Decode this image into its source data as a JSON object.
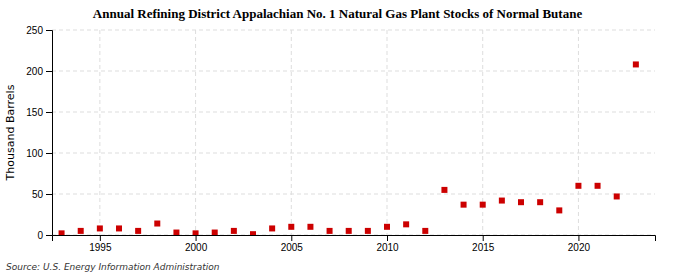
{
  "chart_data": {
    "type": "scatter",
    "title": "Annual Refining District Appalachian No. 1 Natural Gas Plant Stocks of Normal Butane",
    "ylabel": "Thousand Barrels",
    "annotations": [
      "Source: U.S. Energy Information Administration"
    ],
    "x": [
      1993,
      1994,
      1995,
      1996,
      1997,
      1998,
      1999,
      2000,
      2001,
      2002,
      2003,
      2004,
      2005,
      2006,
      2007,
      2008,
      2009,
      2010,
      2011,
      2012,
      2013,
      2014,
      2015,
      2016,
      2017,
      2018,
      2019,
      2020,
      2021,
      2022,
      2023
    ],
    "values": [
      2,
      5,
      8,
      8,
      5,
      14,
      3,
      2,
      3,
      5,
      1,
      8,
      10,
      10,
      5,
      5,
      5,
      10,
      13,
      5,
      55,
      37,
      37,
      42,
      40,
      40,
      30,
      60,
      60,
      47,
      208
    ],
    "color": "#cc0000",
    "marker": "square",
    "xlim": [
      1992.5,
      2024
    ],
    "xticks": [
      1995,
      2000,
      2005,
      2010,
      2015,
      2020
    ],
    "ylim": [
      0,
      250
    ],
    "yticks": [
      0,
      50,
      100,
      150,
      200,
      250
    ],
    "grid": true
  }
}
